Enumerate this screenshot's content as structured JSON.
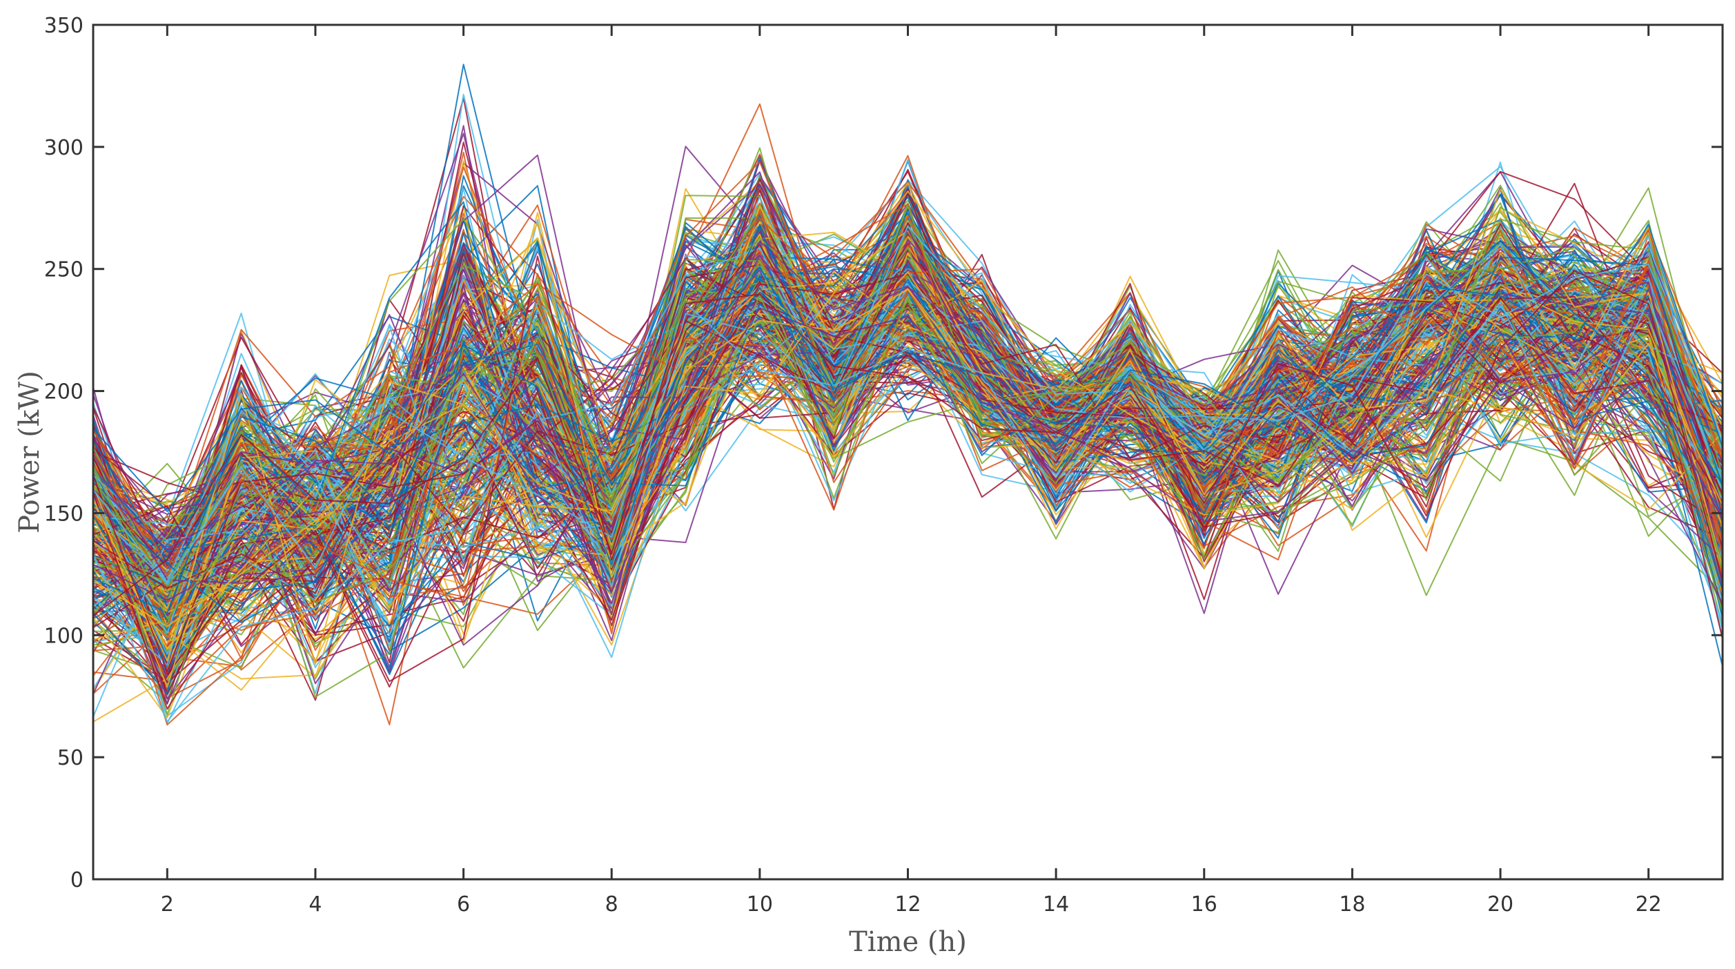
{
  "chart_data": {
    "type": "line",
    "title": "",
    "xlabel": "Time (h)",
    "ylabel": "Power (kW)",
    "xlim": [
      1,
      23
    ],
    "ylim": [
      0,
      350
    ],
    "xticks": [
      2,
      4,
      6,
      8,
      10,
      12,
      14,
      16,
      18,
      20,
      22
    ],
    "yticks": [
      0,
      50,
      100,
      150,
      200,
      250,
      300,
      350
    ],
    "grid": false,
    "legend": "none",
    "x": [
      1,
      2,
      3,
      4,
      5,
      6,
      7,
      8,
      9,
      10,
      11,
      12,
      13,
      14,
      15,
      16,
      17,
      18,
      19,
      20,
      21,
      22,
      23
    ],
    "series_count": 400,
    "series_envelope": {
      "upper": [
        215,
        175,
        245,
        225,
        265,
        345,
        315,
        240,
        305,
        320,
        285,
        315,
        270,
        230,
        255,
        220,
        275,
        270,
        285,
        305,
        285,
        285,
        220
      ],
      "mean": [
        150,
        120,
        155,
        150,
        165,
        200,
        190,
        150,
        215,
        245,
        215,
        245,
        210,
        185,
        205,
        175,
        195,
        200,
        225,
        235,
        225,
        230,
        160
      ],
      "lower": [
        50,
        35,
        55,
        60,
        40,
        45,
        70,
        80,
        125,
        165,
        140,
        170,
        155,
        135,
        140,
        105,
        110,
        125,
        105,
        155,
        140,
        130,
        75
      ]
    },
    "colors": [
      "#0072BD",
      "#D95319",
      "#EDB120",
      "#7E2F8E",
      "#77AC30",
      "#4DBEEE",
      "#A2142F"
    ]
  }
}
